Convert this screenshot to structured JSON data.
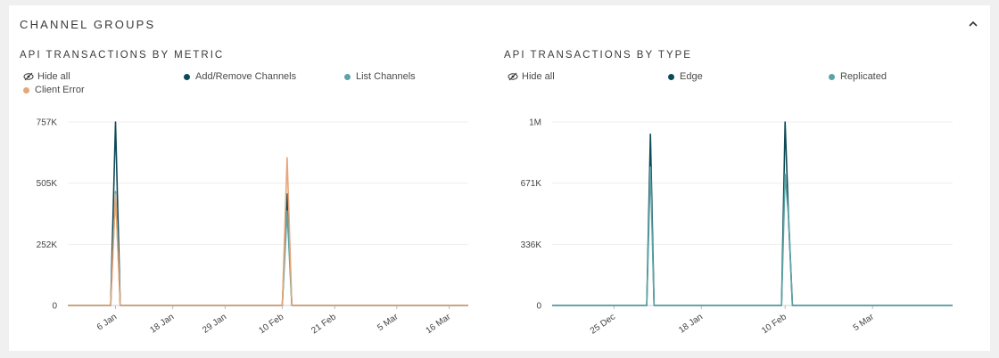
{
  "panel": {
    "title": "CHANNEL GROUPS"
  },
  "chart_data": [
    {
      "type": "line",
      "title": "API TRANSACTIONS BY METRIC",
      "hide_all_label": "Hide all",
      "x_ticks": [
        "6 Jan",
        "18 Jan",
        "29 Jan",
        "10 Feb",
        "21 Feb",
        "5 Mar",
        "16 Mar"
      ],
      "x": [
        "2023-12-27",
        "2024-01-04",
        "2024-01-05",
        "2024-01-06",
        "2024-01-07",
        "2024-01-08",
        "2024-02-09",
        "2024-02-10",
        "2024-02-11",
        "2024-02-12",
        "2024-03-20"
      ],
      "y_ticks": [
        "0",
        "252K",
        "505K",
        "757K"
      ],
      "ylim": [
        0,
        757000
      ],
      "xlim": [
        "2023-12-27",
        "2024-03-20"
      ],
      "legend_position": "top",
      "series": [
        {
          "name": "Add/Remove Channels",
          "color": "#0d4a57",
          "values": [
            0,
            0,
            0,
            757000,
            0,
            0,
            0,
            0,
            460000,
            0,
            0
          ]
        },
        {
          "name": "List Channels",
          "color": "#5ba3a6",
          "values": [
            0,
            0,
            0,
            470000,
            0,
            0,
            0,
            0,
            390000,
            0,
            0
          ]
        },
        {
          "name": "Client Error",
          "color": "#e8a678",
          "values": [
            0,
            0,
            0,
            460000,
            0,
            0,
            0,
            0,
            610000,
            0,
            0
          ]
        }
      ]
    },
    {
      "type": "line",
      "title": "API TRANSACTIONS BY TYPE",
      "hide_all_label": "Hide all",
      "x_ticks": [
        "25 Dec",
        "18 Jan",
        "10 Feb",
        "5 Mar"
      ],
      "x": [
        "2023-12-08",
        "2024-01-02",
        "2024-01-03",
        "2024-01-04",
        "2024-01-05",
        "2024-02-09",
        "2024-02-10",
        "2024-02-11",
        "2024-02-12",
        "2024-03-27"
      ],
      "y_ticks": [
        "0",
        "336K",
        "671K",
        "1M"
      ],
      "ylim": [
        0,
        1007000
      ],
      "xlim": [
        "2023-12-08",
        "2024-03-27"
      ],
      "legend_position": "top",
      "series": [
        {
          "name": "Edge",
          "color": "#0d4a57",
          "values": [
            0,
            0,
            0,
            940000,
            0,
            0,
            1007000,
            450000,
            0,
            0
          ]
        },
        {
          "name": "Replicated",
          "color": "#5ba3a6",
          "values": [
            0,
            0,
            0,
            760000,
            0,
            0,
            720000,
            470000,
            0,
            0
          ]
        }
      ]
    }
  ]
}
